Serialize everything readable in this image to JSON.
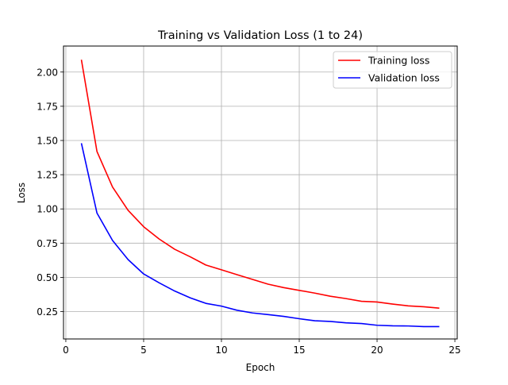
{
  "chart_data": {
    "type": "line",
    "title": "Training vs Validation Loss (1 to 24)",
    "xlabel": "Epoch",
    "ylabel": "Loss",
    "xlim": [
      -0.15,
      25.15
    ],
    "ylim": [
      0.05,
      2.19
    ],
    "xticks": [
      0,
      5,
      10,
      15,
      20,
      25
    ],
    "xtick_labels": [
      "0",
      "5",
      "10",
      "15",
      "20",
      "25"
    ],
    "yticks": [
      0.25,
      0.5,
      0.75,
      1.0,
      1.25,
      1.5,
      1.75,
      2.0
    ],
    "ytick_labels": [
      "0.25",
      "0.50",
      "0.75",
      "1.00",
      "1.25",
      "1.50",
      "1.75",
      "2.00"
    ],
    "grid": true,
    "legend_position": "top-right",
    "x": [
      1,
      2,
      3,
      4,
      5,
      6,
      7,
      8,
      9,
      10,
      11,
      12,
      13,
      14,
      15,
      16,
      17,
      18,
      19,
      20,
      21,
      22,
      23,
      24
    ],
    "series": [
      {
        "name": "Training loss",
        "color": "#ff0000",
        "values": [
          2.09,
          1.42,
          1.16,
          0.99,
          0.87,
          0.78,
          0.705,
          0.65,
          0.59,
          0.555,
          0.52,
          0.485,
          0.45,
          0.425,
          0.405,
          0.385,
          0.362,
          0.345,
          0.325,
          0.32,
          0.305,
          0.292,
          0.285,
          0.275
        ]
      },
      {
        "name": "Validation loss",
        "color": "#0000ff",
        "values": [
          1.48,
          0.97,
          0.77,
          0.63,
          0.525,
          0.46,
          0.4,
          0.35,
          0.31,
          0.29,
          0.26,
          0.24,
          0.228,
          0.215,
          0.198,
          0.183,
          0.178,
          0.168,
          0.163,
          0.15,
          0.146,
          0.145,
          0.14,
          0.14
        ]
      }
    ]
  }
}
